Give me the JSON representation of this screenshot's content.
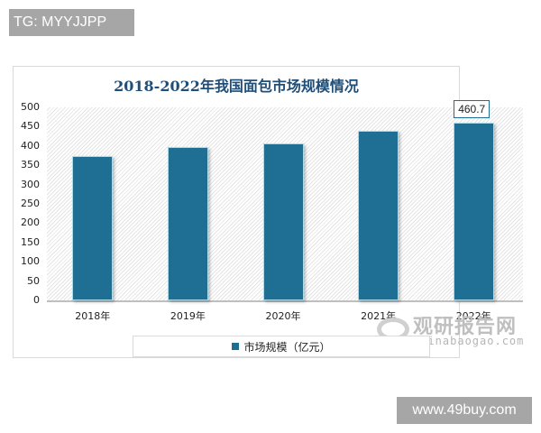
{
  "watermarks": {
    "top_tag": "TG: MYYJJPP",
    "bottom_tag": "www.49buy.com",
    "source_cn": "观研报告网",
    "source_en": "chinabaogao.com"
  },
  "colors": {
    "bar": "#1f6f95",
    "title": "#1f4e79",
    "tag_bg": "#a6a6a6"
  },
  "chart_data": {
    "type": "bar",
    "title": "2018-2022年我国面包市场规模情况",
    "categories": [
      "2018年",
      "2019年",
      "2020年",
      "2021年",
      "2022年"
    ],
    "series": [
      {
        "name": "市场规模（亿元）",
        "values": [
          375,
          398,
          407,
          440,
          460.7
        ]
      }
    ],
    "data_labels": [
      {
        "category": "2022年",
        "text": "460.7"
      }
    ],
    "xlabel": "",
    "ylabel": "",
    "ylim": [
      0,
      500
    ],
    "yticks": [
      "500",
      "450",
      "400",
      "350",
      "300",
      "250",
      "200",
      "150",
      "100",
      "50",
      "0"
    ],
    "grid": false,
    "background": "diagonal hatch",
    "legend_position": "bottom"
  }
}
